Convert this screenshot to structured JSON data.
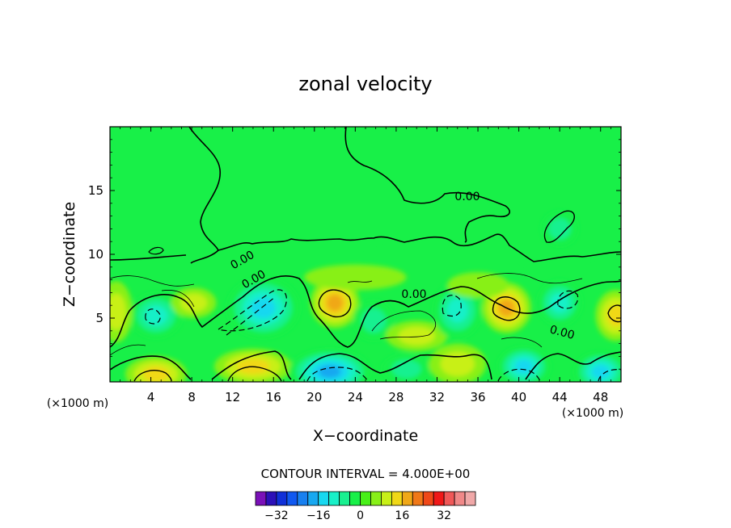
{
  "chart_data": {
    "type": "heatmap",
    "title": "zonal velocity",
    "xlabel": "X−coordinate",
    "ylabel": "Z−coordinate",
    "x_unit": "(×1000 m)",
    "x_unit_right": "(×1000 m)",
    "xlim": [
      0,
      50
    ],
    "ylim": [
      0,
      20
    ],
    "x_ticks": [
      "4",
      "8",
      "12",
      "16",
      "20",
      "24",
      "28",
      "32",
      "36",
      "40",
      "44",
      "48"
    ],
    "y_ticks": [
      "5",
      "10",
      "15"
    ],
    "contour_labels": [
      "0.00",
      "0.00",
      "0.00",
      "0.00",
      "0.00"
    ],
    "contour_interval_text": "CONTOUR INTERVAL = 4.000E+00",
    "colorbar": {
      "tick_labels": [
        "−32",
        "−16",
        "0",
        "16",
        "32"
      ],
      "colors": [
        "#7a10b8",
        "#2c10b8",
        "#1030d8",
        "#1058f0",
        "#1880f0",
        "#18a8f0",
        "#18d8f0",
        "#18f0c8",
        "#18f090",
        "#18f048",
        "#48f018",
        "#88f018",
        "#c8f018",
        "#f0d818",
        "#f0a818",
        "#f07818",
        "#f04818",
        "#f01818",
        "#f05858",
        "#f08888",
        "#f0a8a8"
      ]
    },
    "anomalies": [
      {
        "x": 4.5,
        "z": 5.2,
        "value": -10,
        "rx": 2.6,
        "rz": 1.8
      },
      {
        "x": 4.5,
        "z": 0.6,
        "value": 12,
        "rx": 3.0,
        "rz": 1.4
      },
      {
        "x": 0.6,
        "z": 5.5,
        "value": 8,
        "rx": 1.6,
        "rz": 2.4
      },
      {
        "x": 8.2,
        "z": 6.2,
        "value": 6,
        "rx": 2.2,
        "rz": 1.2
      },
      {
        "x": 15.0,
        "z": 5.8,
        "value": -16,
        "rx": 3.6,
        "rz": 2.4
      },
      {
        "x": 14.0,
        "z": 1.2,
        "value": 12,
        "rx": 3.8,
        "rz": 1.4
      },
      {
        "x": 22.0,
        "z": 6.2,
        "value": 14,
        "rx": 2.4,
        "rz": 2.0
      },
      {
        "x": 21.5,
        "z": 0.8,
        "value": -18,
        "rx": 4.0,
        "rz": 1.8
      },
      {
        "x": 25.8,
        "z": 4.8,
        "value": -6,
        "rx": 2.0,
        "rz": 1.6
      },
      {
        "x": 30.0,
        "z": 3.6,
        "value": 6,
        "rx": 3.0,
        "rz": 1.2
      },
      {
        "x": 29.0,
        "z": 1.0,
        "value": -6,
        "rx": 2.4,
        "rz": 1.2
      },
      {
        "x": 34.0,
        "z": 5.6,
        "value": -10,
        "rx": 2.4,
        "rz": 2.2
      },
      {
        "x": 34.0,
        "z": 1.4,
        "value": 8,
        "rx": 2.8,
        "rz": 1.6
      },
      {
        "x": 38.8,
        "z": 5.8,
        "value": 14,
        "rx": 2.4,
        "rz": 2.0
      },
      {
        "x": 40.5,
        "z": 1.2,
        "value": -14,
        "rx": 2.6,
        "rz": 1.6
      },
      {
        "x": 44.0,
        "z": 6.2,
        "value": -10,
        "rx": 2.2,
        "rz": 1.8
      },
      {
        "x": 44.0,
        "z": 12.0,
        "value": -6,
        "rx": 1.8,
        "rz": 1.4
      },
      {
        "x": 49.5,
        "z": 5.2,
        "value": 12,
        "rx": 2.0,
        "rz": 2.0
      },
      {
        "x": 48.0,
        "z": 0.8,
        "value": -14,
        "rx": 2.6,
        "rz": 1.6
      },
      {
        "x": 24.0,
        "z": 8.2,
        "value": 4,
        "rx": 5.0,
        "rz": 1.0
      },
      {
        "x": 36.0,
        "z": 7.6,
        "value": 4,
        "rx": 3.0,
        "rz": 1.0
      }
    ]
  }
}
